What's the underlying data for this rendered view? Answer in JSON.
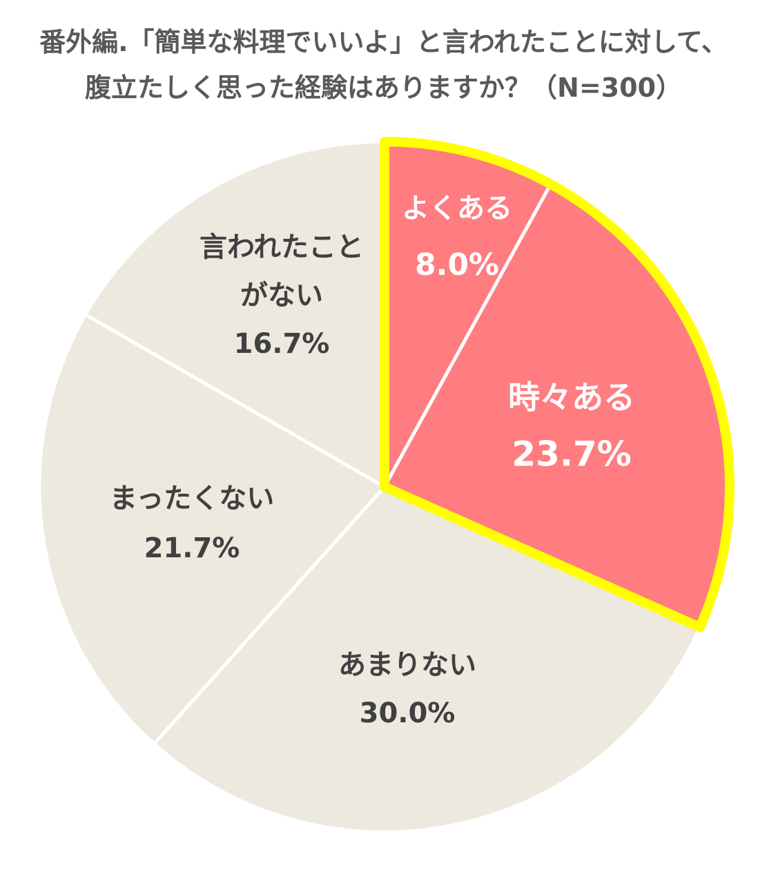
{
  "chart_data": {
    "type": "pie",
    "title_lines": [
      "番外編.「簡単な料理でいいよ」と言われたことに対して、",
      "腹立たしく思った経験はありますか？（N=300）"
    ],
    "slices": [
      {
        "label_lines": [
          "よくある"
        ],
        "value": 8.0,
        "value_label": "8.0%",
        "color": "#ff7c80",
        "text_color": "#ffffff",
        "highlight": true
      },
      {
        "label_lines": [
          "時々ある"
        ],
        "value": 23.7,
        "value_label": "23.7%",
        "color": "#ff7c80",
        "text_color": "#ffffff",
        "highlight": true
      },
      {
        "label_lines": [
          "あまりない"
        ],
        "value": 30.0,
        "value_label": "30.0%",
        "color": "#ede9df",
        "text_color": "#404040",
        "highlight": false
      },
      {
        "label_lines": [
          "まったくない"
        ],
        "value": 21.7,
        "value_label": "21.7%",
        "color": "#ede9df",
        "text_color": "#404040",
        "highlight": false
      },
      {
        "label_lines": [
          "言われたこと",
          "がない"
        ],
        "value": 16.7,
        "value_label": "16.7%",
        "color": "#ede9df",
        "text_color": "#404040",
        "highlight": false
      }
    ],
    "start": "12 o'clock",
    "direction": "clockwise",
    "highlight_color": "#ffff00",
    "separator_color": "#ffffff",
    "legend": "none"
  }
}
